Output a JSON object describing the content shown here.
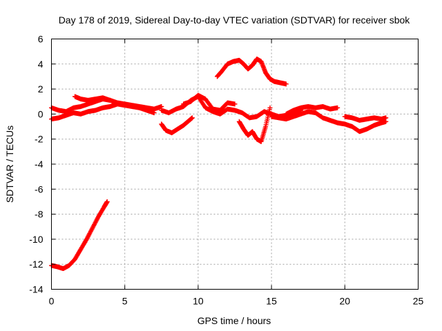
{
  "chart_data": {
    "type": "scatter",
    "title": "Day 178 of 2019, Sidereal Day-to-day VTEC variation (SDTVAR) for receiver sbok",
    "xlabel": "GPS time / hours",
    "ylabel": "SDTVAR / TECUs",
    "xlim": [
      0,
      25
    ],
    "ylim": [
      -14,
      6
    ],
    "x_ticks": [
      0,
      5,
      10,
      15,
      20,
      25
    ],
    "y_ticks": [
      -14,
      -12,
      -10,
      -8,
      -6,
      -4,
      -2,
      0,
      2,
      4,
      6
    ],
    "grid": true,
    "marker": "plus",
    "marker_color": "#ff0000",
    "series": [
      {
        "name": "segment-early-descent",
        "x": [
          0.0,
          0.4,
          0.8,
          1.2,
          1.6,
          2.0,
          2.4,
          2.8,
          3.2,
          3.6,
          3.8
        ],
        "y": [
          -12.1,
          -12.2,
          -12.35,
          -12.1,
          -11.6,
          -10.8,
          -10.0,
          -9.1,
          -8.2,
          -7.4,
          -7.0
        ]
      },
      {
        "name": "segment-early-lower",
        "x": [
          0.0,
          0.5,
          1.0,
          1.5,
          2.0,
          2.5,
          3.0,
          3.5,
          4.0,
          4.5,
          5.0,
          5.5,
          6.0,
          6.5,
          7.0
        ],
        "y": [
          -0.4,
          -0.3,
          -0.1,
          0.1,
          0.0,
          0.2,
          0.3,
          0.5,
          0.6,
          0.8,
          0.7,
          0.6,
          0.5,
          0.3,
          0.1
        ]
      },
      {
        "name": "segment-early-upper",
        "x": [
          0.0,
          0.5,
          1.0,
          1.5,
          2.0,
          2.5,
          3.0,
          3.5,
          4.0,
          4.5,
          5.0,
          5.5,
          6.0,
          6.5,
          7.0,
          7.5
        ],
        "y": [
          0.5,
          0.3,
          0.2,
          0.5,
          0.6,
          0.8,
          1.0,
          1.2,
          1.1,
          0.9,
          0.8,
          0.7,
          0.6,
          0.5,
          0.4,
          0.6
        ]
      },
      {
        "name": "segment-1-4",
        "x": [
          1.6,
          2.0,
          2.5,
          3.0,
          3.5,
          4.0
        ],
        "y": [
          1.4,
          1.2,
          1.1,
          1.2,
          1.3,
          1.1
        ]
      },
      {
        "name": "segment-mid-dip",
        "x": [
          7.5,
          7.8,
          8.2,
          8.6,
          9.0,
          9.3,
          9.6
        ],
        "y": [
          -0.8,
          -1.3,
          -1.5,
          -1.2,
          -0.9,
          -0.6,
          -0.3
        ]
      },
      {
        "name": "segment-mid",
        "x": [
          7.5,
          8.0,
          8.5,
          9.0,
          9.5,
          10.0,
          10.5,
          11.0,
          11.5,
          12.0,
          12.5,
          13.0,
          13.5,
          14.0,
          14.5,
          15.0,
          15.5,
          16.0,
          16.5,
          17.0
        ],
        "y": [
          0.3,
          0.1,
          0.4,
          0.6,
          1.1,
          1.4,
          0.5,
          0.2,
          0.0,
          0.4,
          0.3,
          0.1,
          -0.3,
          -0.2,
          0.2,
          0.0,
          -0.2,
          -0.1,
          0.1,
          0.3
        ]
      },
      {
        "name": "segment-mid-upper",
        "x": [
          9.0,
          9.5,
          10.0,
          10.5,
          11.0,
          11.5,
          12.0,
          12.5
        ],
        "y": [
          0.8,
          1.0,
          1.5,
          1.2,
          0.4,
          0.3,
          0.9,
          0.8
        ]
      },
      {
        "name": "segment-high",
        "x": [
          11.3,
          11.6,
          12.0,
          12.4,
          12.8,
          13.1,
          13.4,
          13.7,
          14.0,
          14.3,
          14.6,
          14.9,
          15.2,
          15.6,
          16.0
        ],
        "y": [
          3.0,
          3.4,
          4.0,
          4.2,
          4.3,
          4.0,
          3.6,
          3.9,
          4.4,
          4.2,
          3.3,
          2.8,
          2.6,
          2.5,
          2.4
        ]
      },
      {
        "name": "segment-low-dip",
        "x": [
          12.8,
          13.1,
          13.4,
          13.7,
          14.0,
          14.3,
          14.6,
          14.9
        ],
        "y": [
          -0.6,
          -1.2,
          -1.7,
          -1.4,
          -2.0,
          -2.2,
          -1.0,
          0.5
        ]
      },
      {
        "name": "segment-late-upper",
        "x": [
          16.0,
          16.5,
          17.0,
          17.5,
          18.0,
          18.5,
          19.0,
          19.5
        ],
        "y": [
          0.0,
          0.3,
          0.5,
          0.6,
          0.5,
          0.6,
          0.4,
          0.5
        ]
      },
      {
        "name": "segment-late",
        "x": [
          15.0,
          15.5,
          16.0,
          16.5,
          17.0,
          17.5,
          18.0,
          18.5,
          19.0,
          19.5,
          20.0,
          20.5,
          21.0,
          21.5,
          22.0,
          22.5,
          22.8
        ],
        "y": [
          -0.2,
          -0.3,
          -0.4,
          -0.2,
          0.0,
          0.2,
          0.1,
          -0.3,
          -0.5,
          -0.7,
          -0.8,
          -1.0,
          -1.4,
          -1.2,
          -0.9,
          -0.7,
          -0.6
        ]
      },
      {
        "name": "segment-late-band",
        "x": [
          20.0,
          20.5,
          21.0,
          21.5,
          22.0,
          22.5,
          22.8
        ],
        "y": [
          -0.2,
          -0.3,
          -0.5,
          -0.4,
          -0.3,
          -0.4,
          -0.3
        ]
      }
    ]
  }
}
